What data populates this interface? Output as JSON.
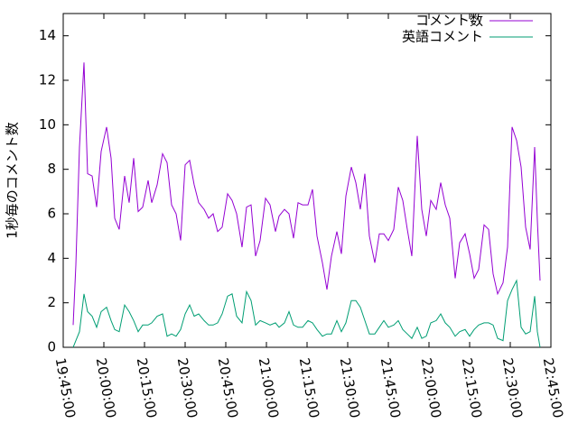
{
  "chart_data": {
    "type": "line",
    "y_label": "1秒毎のコメント数",
    "x": [
      "19:48:40",
      "19:49:40",
      "19:51:00",
      "19:52:40",
      "19:54:00",
      "19:55:40",
      "19:57:20",
      "19:59:00",
      "20:01:00",
      "20:02:40",
      "20:04:00",
      "20:05:40",
      "20:07:40",
      "20:09:20",
      "20:11:00",
      "20:12:40",
      "20:14:20",
      "20:16:20",
      "20:17:40",
      "20:19:40",
      "20:21:40",
      "20:23:20",
      "20:25:00",
      "20:26:40",
      "20:28:20",
      "20:30:00",
      "20:31:40",
      "20:33:20",
      "20:35:00",
      "20:37:00",
      "20:38:40",
      "20:40:20",
      "20:42:00",
      "20:43:40",
      "20:45:40",
      "20:47:20",
      "20:49:00",
      "20:51:00",
      "20:52:40",
      "20:54:20",
      "20:56:00",
      "20:57:40",
      "20:59:40",
      "21:01:20",
      "21:03:20",
      "21:04:40",
      "21:06:40",
      "21:08:20",
      "21:10:00",
      "21:11:40",
      "21:13:20",
      "21:15:20",
      "21:17:00",
      "21:18:40",
      "21:20:40",
      "21:22:20",
      "21:24:00",
      "21:26:00",
      "21:27:40",
      "21:29:20",
      "21:31:20",
      "21:33:00",
      "21:34:40",
      "21:36:20",
      "21:38:00",
      "21:40:00",
      "21:41:40",
      "21:43:20",
      "21:45:00",
      "21:47:00",
      "21:48:40",
      "21:50:20",
      "21:52:00",
      "21:53:40",
      "21:55:40",
      "21:57:20",
      "21:59:00",
      "22:00:40",
      "22:02:40",
      "22:04:20",
      "22:06:00",
      "22:07:40",
      "22:09:40",
      "22:11:20",
      "22:13:20",
      "22:15:00",
      "22:16:40",
      "22:18:20",
      "22:20:20",
      "22:22:00",
      "22:23:40",
      "22:25:20",
      "22:27:20",
      "22:29:00",
      "22:30:40",
      "22:32:20",
      "22:34:00",
      "22:35:40",
      "22:37:20",
      "22:39:00",
      "22:40:00",
      "22:41:00"
    ],
    "series": [
      {
        "name": "コメント数",
        "color": "#9400d3",
        "values": [
          1.0,
          3.7,
          9.0,
          12.8,
          7.8,
          7.7,
          6.3,
          8.8,
          9.9,
          8.5,
          5.8,
          5.3,
          7.7,
          6.5,
          8.5,
          6.1,
          6.3,
          7.5,
          6.5,
          7.3,
          8.7,
          8.3,
          6.4,
          6.0,
          4.8,
          8.2,
          8.4,
          7.3,
          6.5,
          6.2,
          5.8,
          6.0,
          5.2,
          5.4,
          6.9,
          6.6,
          6.0,
          4.5,
          6.3,
          6.4,
          4.1,
          4.8,
          6.7,
          6.4,
          5.2,
          5.9,
          6.2,
          6.0,
          4.9,
          6.5,
          6.4,
          6.4,
          7.1,
          5.0,
          3.8,
          2.6,
          4.1,
          5.2,
          4.2,
          6.8,
          8.1,
          7.4,
          6.2,
          7.8,
          5.0,
          3.8,
          5.1,
          5.1,
          4.8,
          5.3,
          7.2,
          6.6,
          5.3,
          4.1,
          9.5,
          6.2,
          5.0,
          6.6,
          6.2,
          7.4,
          6.4,
          5.8,
          3.1,
          4.7,
          5.1,
          4.2,
          3.1,
          3.5,
          5.5,
          5.3,
          3.3,
          2.4,
          2.9,
          4.5,
          9.9,
          9.3,
          8.1,
          5.4,
          4.4,
          9.0,
          5.7,
          3.0
        ]
      },
      {
        "name": "英語コメント",
        "color": "#009e73",
        "values": [
          0,
          0.3,
          0.7,
          2.4,
          1.6,
          1.4,
          0.9,
          1.6,
          1.8,
          1.2,
          0.8,
          0.7,
          1.9,
          1.6,
          1.2,
          0.7,
          1.0,
          1.0,
          1.1,
          1.4,
          1.5,
          0.5,
          0.6,
          0.5,
          0.8,
          1.5,
          1.9,
          1.4,
          1.5,
          1.2,
          1.0,
          1.0,
          1.1,
          1.5,
          2.3,
          2.4,
          1.4,
          1.1,
          2.5,
          2.1,
          1.0,
          1.2,
          1.1,
          1.0,
          1.1,
          0.9,
          1.1,
          1.6,
          1.0,
          0.9,
          0.9,
          1.2,
          1.1,
          0.8,
          0.5,
          0.6,
          0.6,
          1.2,
          0.7,
          1.1,
          2.1,
          2.1,
          1.8,
          1.2,
          0.6,
          0.6,
          0.9,
          1.2,
          0.9,
          1.0,
          1.2,
          0.8,
          0.6,
          0.4,
          0.9,
          0.4,
          0.5,
          1.1,
          1.2,
          1.5,
          1.1,
          0.9,
          0.5,
          0.7,
          0.8,
          0.5,
          0.8,
          1.0,
          1.1,
          1.1,
          1.0,
          0.4,
          0.3,
          2.1,
          2.6,
          3.0,
          0.9,
          0.6,
          0.7,
          2.3,
          0.7,
          0
        ]
      }
    ],
    "xlim": [
      "19:45:00",
      "22:45:00"
    ],
    "xticks": [
      "19:45:00",
      "20:00:00",
      "20:15:00",
      "20:30:00",
      "20:45:00",
      "21:00:00",
      "21:15:00",
      "21:30:00",
      "21:45:00",
      "22:00:00",
      "22:15:00",
      "22:30:00",
      "22:45:00"
    ],
    "ylim": [
      0,
      15
    ],
    "yticks": [
      0,
      2,
      4,
      6,
      8,
      10,
      12,
      14
    ],
    "legend": "top-right"
  }
}
